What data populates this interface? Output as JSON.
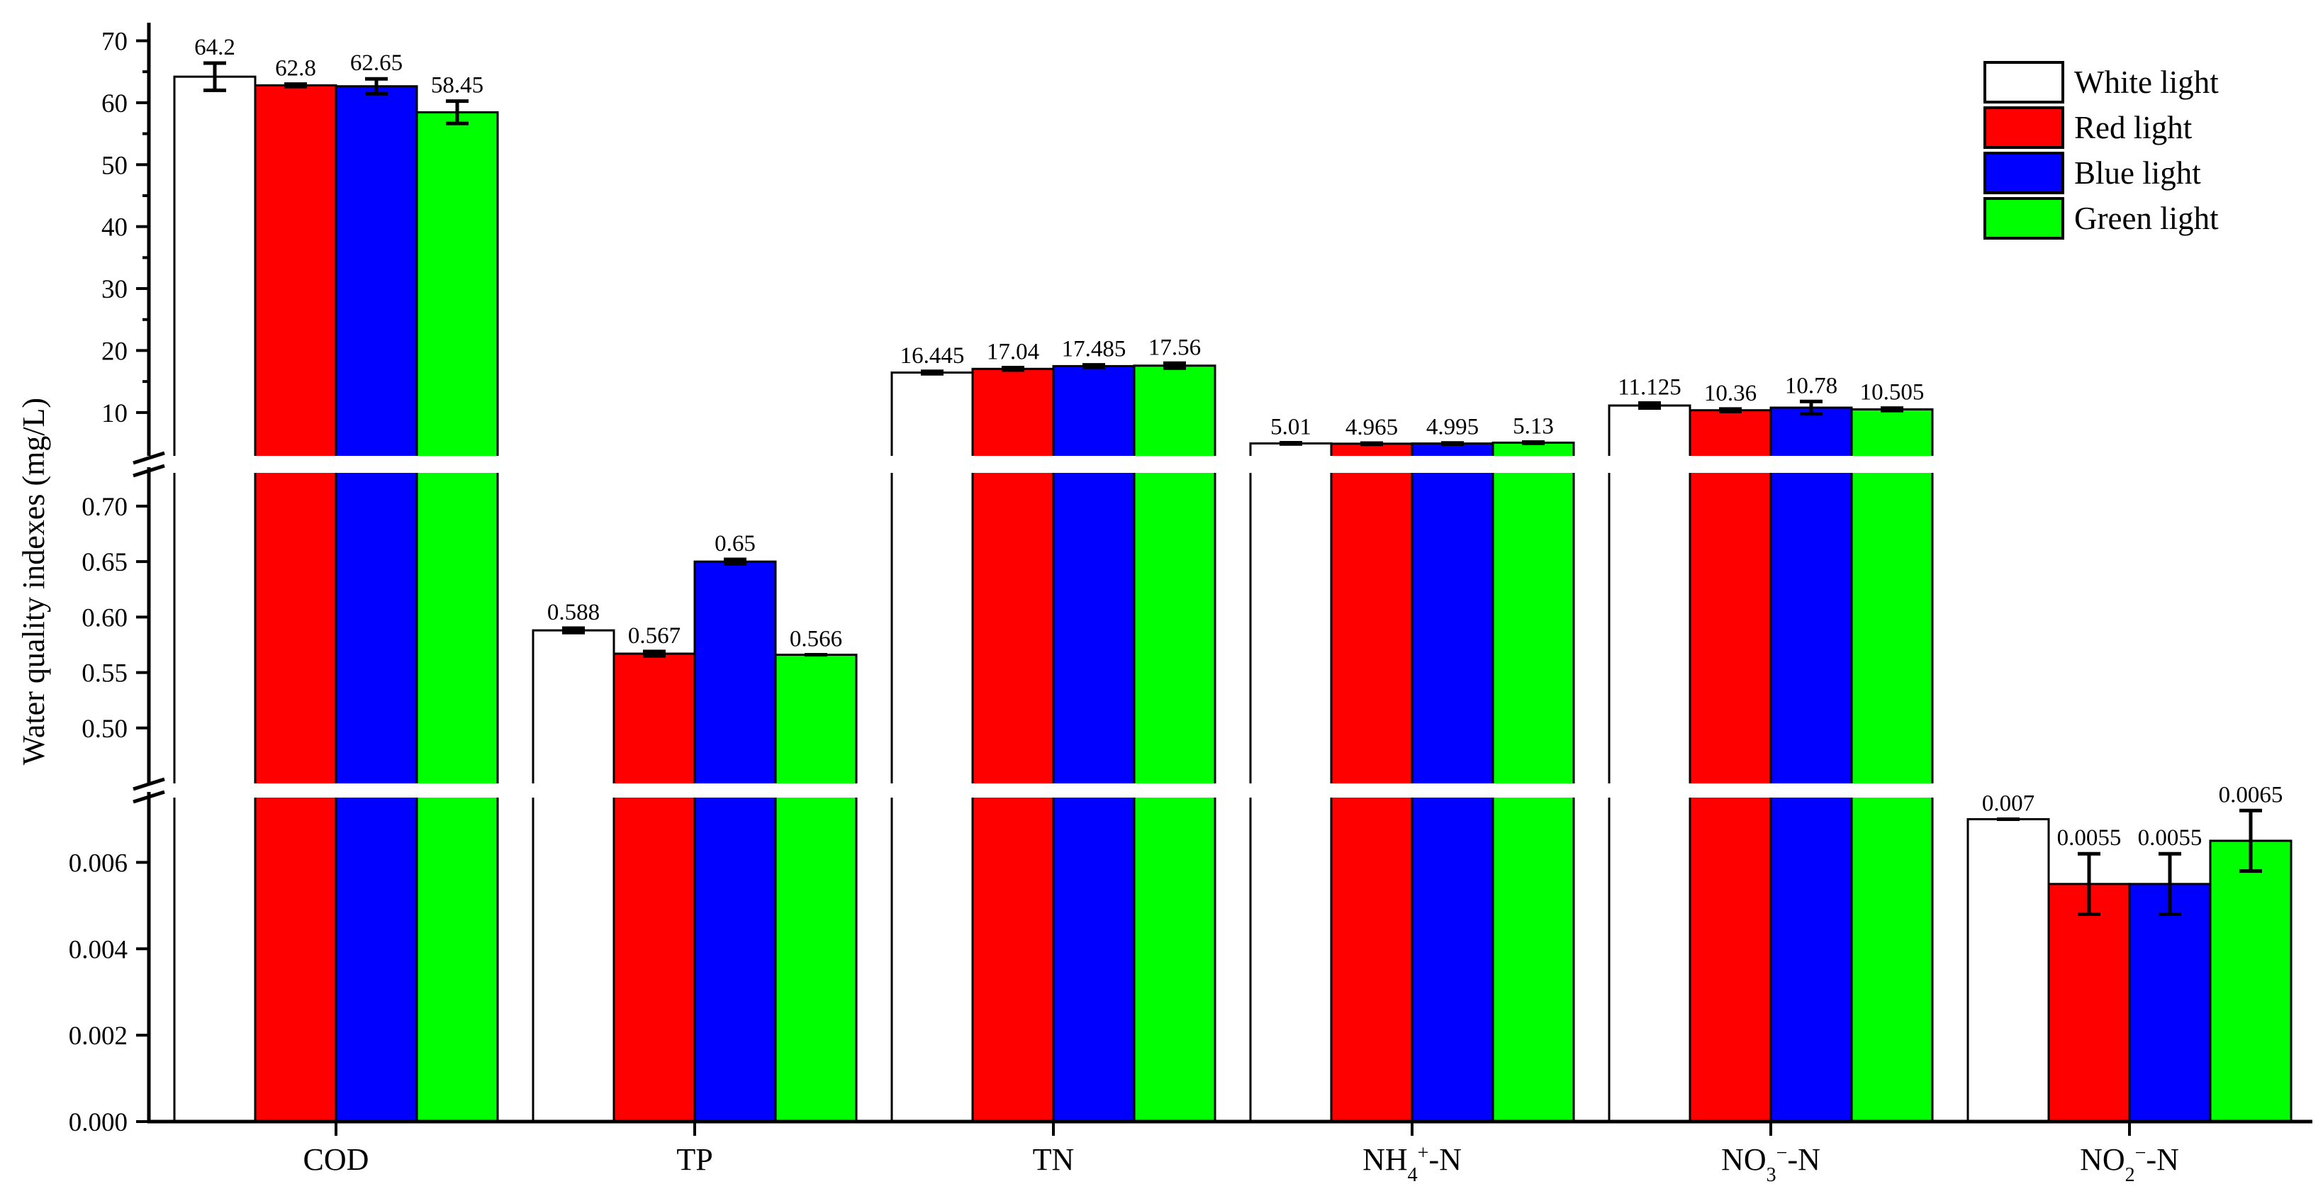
{
  "chart_data": {
    "type": "bar",
    "ylabel": "Water quality indexes (mg/L)",
    "xlabel": "",
    "categories": [
      {
        "label": "COD"
      },
      {
        "label": "TP"
      },
      {
        "label": "TN"
      },
      {
        "label": "NH4+-N",
        "base": "NH",
        "sub": "4",
        "sup": "+",
        "suffix": "-N"
      },
      {
        "label": "NO3−-N",
        "base": "NO",
        "sub": "3",
        "sup": "−",
        "suffix": "-N"
      },
      {
        "label": "NO2−-N",
        "base": "NO",
        "sub": "2",
        "sup": "−",
        "suffix": "-N"
      }
    ],
    "segments": [
      {
        "range": [
          0,
          0.0075
        ],
        "ticks": [
          0.0,
          0.002,
          0.004,
          0.006
        ],
        "tick_labels": [
          "0.000",
          "0.002",
          "0.004",
          "0.006"
        ]
      },
      {
        "range": [
          0.45,
          0.73
        ],
        "ticks": [
          0.5,
          0.55,
          0.6,
          0.65,
          0.7
        ],
        "tick_labels": [
          "0.50",
          "0.55",
          "0.60",
          "0.65",
          "0.70"
        ]
      },
      {
        "range": [
          3,
          72
        ],
        "ticks": [
          10,
          20,
          30,
          40,
          50,
          60,
          70
        ],
        "tick_labels": [
          "10",
          "20",
          "30",
          "40",
          "50",
          "60",
          "70"
        ]
      }
    ],
    "category_segment": [
      2,
      1,
      2,
      2,
      2,
      0
    ],
    "series": [
      {
        "name": "White light",
        "color": "#ffffff",
        "values": [
          64.2,
          0.588,
          16.445,
          5.01,
          11.125,
          0.007
        ],
        "errors": [
          2.2,
          0.002,
          0.2,
          0.1,
          0.4,
          0.0
        ],
        "labels": [
          "64.2",
          "0.588",
          "16.445",
          "5.01",
          "11.125",
          "0.007"
        ]
      },
      {
        "name": "Red light",
        "color": "#ff0000",
        "values": [
          62.8,
          0.567,
          17.04,
          4.965,
          10.36,
          0.0055
        ],
        "errors": [
          0.2,
          0.002,
          0.2,
          0.1,
          0.2,
          0.0007
        ],
        "labels": [
          "62.8",
          "0.567",
          "17.04",
          "4.965",
          "10.36",
          "0.0055"
        ]
      },
      {
        "name": "Blue light",
        "color": "#0000ff",
        "values": [
          62.65,
          0.65,
          17.485,
          4.995,
          10.78,
          0.0055
        ],
        "errors": [
          1.2,
          0.002,
          0.2,
          0.1,
          1.0,
          0.0007
        ],
        "labels": [
          "62.65",
          "0.65",
          "17.485",
          "4.995",
          "10.78",
          "0.0055"
        ]
      },
      {
        "name": "Green light",
        "color": "#00ff00",
        "values": [
          58.45,
          0.566,
          17.56,
          5.13,
          10.505,
          0.0065
        ],
        "errors": [
          1.8,
          0.0,
          0.4,
          0.1,
          0.2,
          0.0007
        ],
        "labels": [
          "58.45",
          "0.566",
          "17.56",
          "5.13",
          "10.505",
          "0.0065"
        ]
      }
    ],
    "legend_position": "top-right",
    "grid": false
  }
}
